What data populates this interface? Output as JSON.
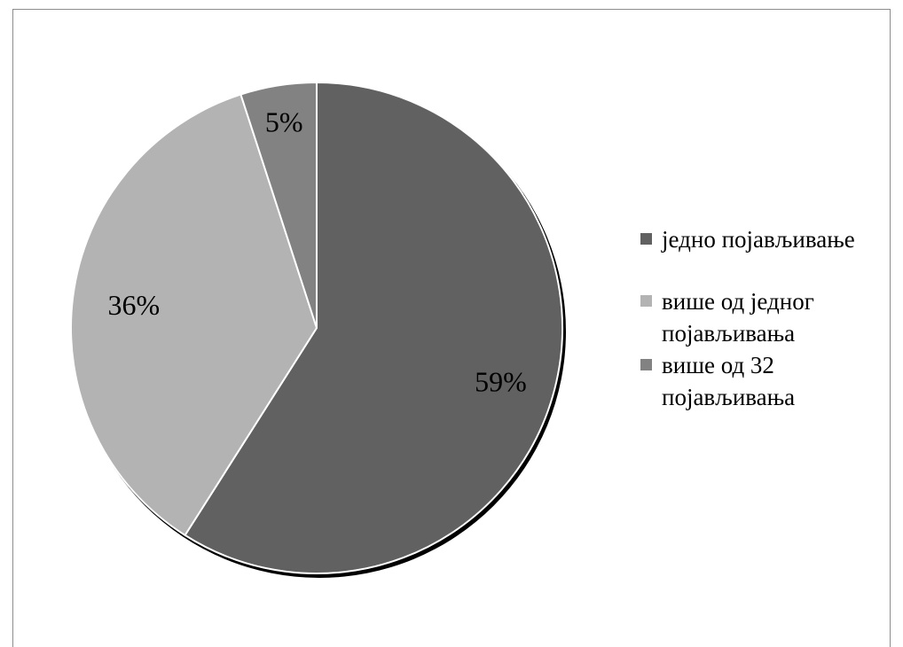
{
  "chart_data": {
    "type": "pie",
    "title": "",
    "categories": [
      "једно појављивање",
      "више од једног појављивања",
      "више од 32 појављивања"
    ],
    "values": [
      59,
      36,
      5
    ],
    "labels": [
      "59%",
      "36%",
      "5%"
    ],
    "colors": [
      "#616161",
      "#b3b3b3",
      "#828282"
    ],
    "legend": {
      "placement": "right",
      "items": [
        {
          "label": "једно појављивање",
          "color": "#616161"
        },
        {
          "label": "више од једног појављивања",
          "color": "#b3b3b3"
        },
        {
          "label": "више од 32 појављивања",
          "color": "#828282"
        }
      ]
    }
  }
}
